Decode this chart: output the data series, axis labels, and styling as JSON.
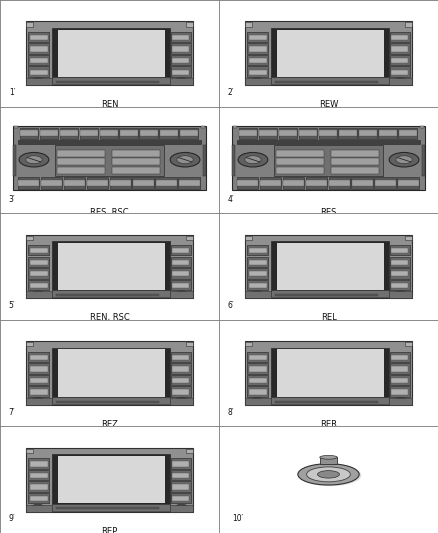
{
  "cells": [
    {
      "num": "1",
      "label": "REN",
      "type": "nav"
    },
    {
      "num": "2",
      "label": "REW",
      "type": "nav"
    },
    {
      "num": "3",
      "label": "RES, RSC",
      "type": "radio"
    },
    {
      "num": "4",
      "label": "RES",
      "type": "radio"
    },
    {
      "num": "5",
      "label": "REN, RSC",
      "type": "nav2"
    },
    {
      "num": "6",
      "label": "REL",
      "type": "nav2"
    },
    {
      "num": "7",
      "label": "REZ",
      "type": "nav2"
    },
    {
      "num": "8",
      "label": "RER",
      "type": "nav2"
    },
    {
      "num": "9",
      "label": "REP",
      "type": "nav2"
    },
    {
      "num": "10",
      "label": "",
      "type": "knob"
    }
  ],
  "bg_color": "#f0f0f0",
  "cell_bg": "#ffffff",
  "body_dark": "#404040",
  "body_mid": "#787878",
  "body_light": "#b4b4b4",
  "screen_color": "#e8e8e8",
  "btn_dark": "#505050"
}
